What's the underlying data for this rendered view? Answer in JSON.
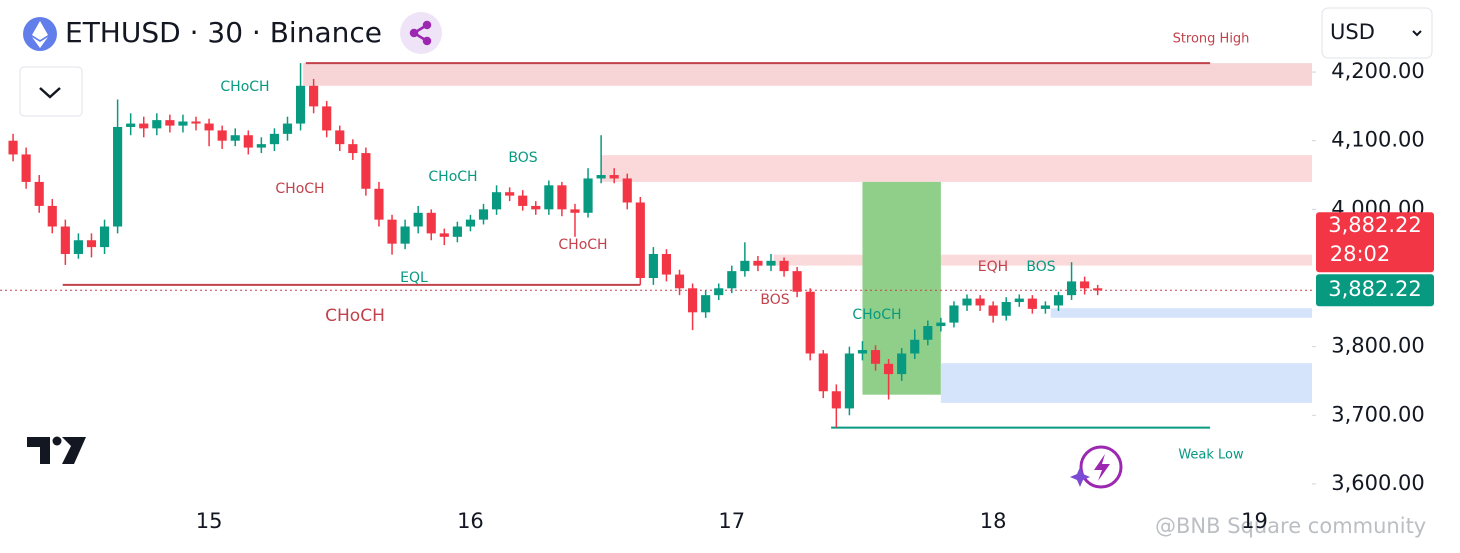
{
  "header": {
    "symbol": "ETHUSD · 30 · Binance",
    "currency": "USD"
  },
  "watermark": "@BNB Square community",
  "chart_data": {
    "type": "candlestick",
    "x": [
      14.25,
      14.3,
      14.35,
      14.4,
      14.45,
      14.5,
      14.55,
      14.6,
      14.65,
      14.7,
      14.75,
      14.8,
      14.85,
      14.9,
      14.95,
      15,
      15.05,
      15.1,
      15.15,
      15.2,
      15.25,
      15.3,
      15.35,
      15.4,
      15.45,
      15.5,
      15.55,
      15.6,
      15.65,
      15.7,
      15.75,
      15.8,
      15.85,
      15.9,
      15.95,
      16,
      16.05,
      16.1,
      16.15,
      16.2,
      16.25,
      16.3,
      16.35,
      16.4,
      16.45,
      16.5,
      16.55,
      16.6,
      16.65,
      16.7,
      16.75,
      16.8,
      16.85,
      16.9,
      16.95,
      17,
      17.05,
      17.1,
      17.15,
      17.2,
      17.25,
      17.3,
      17.35,
      17.4,
      17.45,
      17.5,
      17.55,
      17.6,
      17.65,
      17.7,
      17.75,
      17.8,
      17.85,
      17.9,
      17.95,
      18,
      18.05,
      18.1,
      18.15,
      18.2,
      18.25,
      18.3,
      18.35,
      18.4
    ],
    "open": [
      4100,
      4080,
      4040,
      4005,
      3975,
      3935,
      3955,
      3945,
      3975,
      4120,
      4125,
      4118,
      4130,
      4122,
      4128,
      4125,
      4115,
      4100,
      4108,
      4090,
      4095,
      4110,
      4125,
      4180,
      4150,
      4115,
      4095,
      4082,
      4030,
      3985,
      3950,
      3975,
      3995,
      3965,
      3960,
      3975,
      3985,
      4000,
      4025,
      4020,
      4005,
      4000,
      4035,
      4000,
      3995,
      4045,
      4050,
      4045,
      4010,
      3900,
      3935,
      3905,
      3885,
      3850,
      3875,
      3885,
      3910,
      3925,
      3918,
      3925,
      3910,
      3880,
      3790,
      3735,
      3710,
      3790,
      3795,
      3775,
      3760,
      3790,
      3810,
      3830,
      3835,
      3860,
      3870,
      3860,
      3845,
      3865,
      3870,
      3855,
      3860,
      3875,
      3895,
      3885
    ],
    "high": [
      4110,
      4090,
      4050,
      4015,
      3985,
      3965,
      3965,
      3985,
      4160,
      4140,
      4135,
      4140,
      4138,
      4138,
      4135,
      4132,
      4122,
      4118,
      4115,
      4105,
      4118,
      4135,
      4213,
      4190,
      4158,
      4122,
      4102,
      4090,
      4040,
      3992,
      3985,
      4005,
      4000,
      3972,
      3982,
      3992,
      4008,
      4035,
      4032,
      4028,
      4012,
      4042,
      4040,
      4008,
      4060,
      4108,
      4060,
      4052,
      4018,
      3945,
      3942,
      3912,
      3892,
      3882,
      3892,
      3918,
      3952,
      3932,
      3935,
      3930,
      3916,
      3885,
      3795,
      3745,
      3800,
      3808,
      3802,
      3782,
      3798,
      3825,
      3838,
      3842,
      3866,
      3876,
      3875,
      3866,
      3872,
      3876,
      3875,
      3866,
      3880,
      3923,
      3902,
      3890
    ],
    "low": [
      4070,
      4030,
      3995,
      3965,
      3919,
      3928,
      3930,
      3935,
      3965,
      4108,
      4105,
      4108,
      4112,
      4112,
      4115,
      4092,
      4088,
      4092,
      4080,
      4082,
      4085,
      4100,
      4115,
      4140,
      4105,
      4085,
      4072,
      4020,
      3975,
      3934,
      3942,
      3965,
      3955,
      3948,
      3952,
      3968,
      3978,
      3992,
      4012,
      3998,
      3992,
      3992,
      3990,
      3960,
      3988,
      4038,
      4038,
      4000,
      3890,
      3890,
      3895,
      3875,
      3824,
      3842,
      3868,
      3878,
      3902,
      3910,
      3910,
      3902,
      3872,
      3780,
      3725,
      3682,
      3700,
      3780,
      3765,
      3723,
      3750,
      3782,
      3802,
      3822,
      3828,
      3852,
      3852,
      3835,
      3838,
      3858,
      3848,
      3848,
      3852,
      3868,
      3876,
      3875
    ],
    "close": [
      4080,
      4040,
      4005,
      3975,
      3935,
      3955,
      3945,
      3975,
      4120,
      4125,
      4118,
      4130,
      4122,
      4128,
      4125,
      4115,
      4100,
      4108,
      4090,
      4095,
      4110,
      4125,
      4180,
      4150,
      4115,
      4095,
      4082,
      4030,
      3985,
      3950,
      3975,
      3995,
      3965,
      3960,
      3975,
      3985,
      4000,
      4025,
      4020,
      4005,
      4000,
      4035,
      4000,
      3995,
      4045,
      4050,
      4045,
      4010,
      3900,
      3935,
      3905,
      3885,
      3850,
      3875,
      3885,
      3910,
      3925,
      3918,
      3925,
      3910,
      3880,
      3790,
      3735,
      3710,
      3790,
      3795,
      3775,
      3760,
      3790,
      3810,
      3830,
      3835,
      3860,
      3870,
      3860,
      3845,
      3865,
      3870,
      3855,
      3860,
      3875,
      3895,
      3885,
      3882
    ],
    "up_color": "#089981",
    "down_color": "#f23645",
    "xlim": [
      14.2,
      19.22
    ],
    "xticks": [
      15,
      16,
      17,
      18,
      19
    ],
    "ylim": [
      3562,
      4305
    ],
    "yticks": [
      {
        "value": 3600,
        "label": "3,600.00"
      },
      {
        "value": 3700,
        "label": "3,700.00"
      },
      {
        "value": 3800,
        "label": "3,800.00"
      },
      {
        "value": 4000,
        "label": "4,000.00"
      },
      {
        "value": 4100,
        "label": "4,100.00"
      },
      {
        "value": 4200,
        "label": "4,200.00"
      }
    ],
    "last_price": 3882.22,
    "last_price_label": "3,882.22",
    "countdown": "28:02",
    "zones": [
      {
        "y": [
          4180,
          4213
        ],
        "x": [
          15.36,
          19.22
        ],
        "color": "#f7d4d6"
      },
      {
        "y": [
          4040,
          4079
        ],
        "x": [
          16.5,
          19.22
        ],
        "color": "#fbd9db"
      },
      {
        "y": [
          3918,
          3934
        ],
        "x": [
          17.16,
          19.22
        ],
        "color": "#fbdadc"
      },
      {
        "y": [
          3730,
          4040
        ],
        "x": [
          17.5,
          17.8
        ],
        "color": "#8fcf89"
      },
      {
        "y": [
          3842,
          3856
        ],
        "x": [
          18.22,
          19.22
        ],
        "color": "#d6e4fb"
      },
      {
        "y": [
          3718,
          3776
        ],
        "x": [
          17.8,
          19.22
        ],
        "color": "#d6e4fb"
      }
    ],
    "levels": [
      {
        "value": 4213,
        "x": [
          15.37,
          18.83
        ],
        "color": "#c2424c"
      },
      {
        "value": 3890,
        "x": [
          14.44,
          16.65
        ],
        "color": "#c2424c"
      },
      {
        "value": 3682,
        "x": [
          17.38,
          18.83
        ],
        "color": "#089981"
      }
    ],
    "annotations": [
      {
        "text": "Strong High",
        "color": "#c2424c"
      },
      {
        "text": "CHoCH",
        "color": "#089981"
      },
      {
        "text": "CHoCH",
        "color": "#c2424c"
      },
      {
        "text": "CHoCH",
        "color": "#089981"
      },
      {
        "text": "BOS",
        "color": "#089981"
      },
      {
        "text": "CHoCH",
        "color": "#c2424c"
      },
      {
        "text": "EQL",
        "color": "#089981"
      },
      {
        "text": "CHoCH",
        "color": "#c2424c"
      },
      {
        "text": "BOS",
        "color": "#c2424c"
      },
      {
        "text": "CHoCH",
        "color": "#089981"
      },
      {
        "text": "EQH",
        "color": "#c2424c"
      },
      {
        "text": "BOS",
        "color": "#089981"
      },
      {
        "text": "Weak Low",
        "color": "#089981"
      }
    ]
  }
}
